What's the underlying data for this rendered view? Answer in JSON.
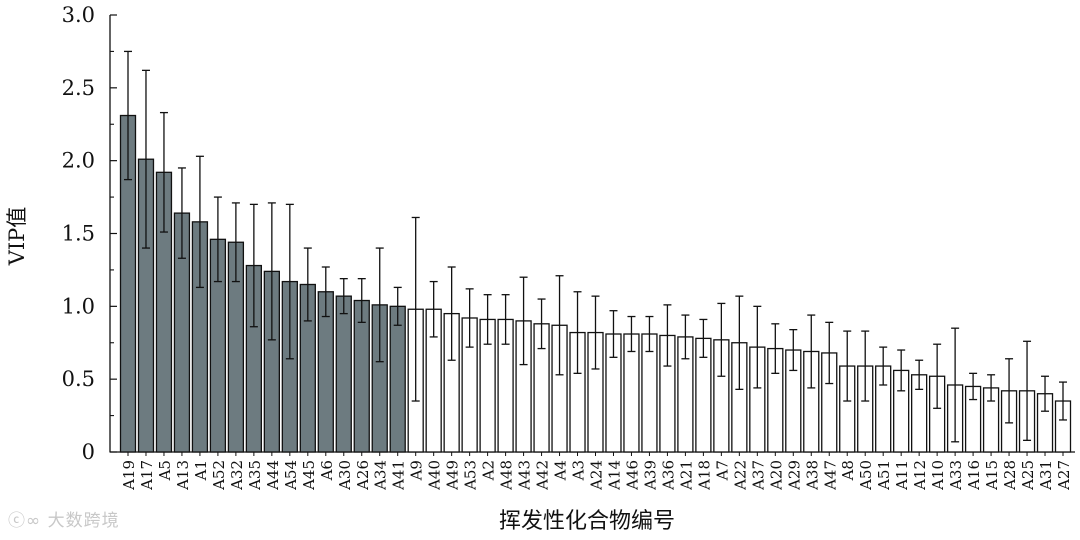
{
  "chart_data": {
    "type": "bar",
    "title": "",
    "ylabel": "VIP值",
    "xlabel": "挥发性化合物编号",
    "ylim": [
      0,
      3.0
    ],
    "yticks": [
      "0",
      "0.5",
      "1.0",
      "1.5",
      "2.0",
      "2.5",
      "3.0"
    ],
    "threshold": 1.0,
    "colors": {
      "above_threshold": "#6d7b80",
      "below_threshold": "#ffffff",
      "stroke": "#111111"
    },
    "categories": [
      "A19",
      "A17",
      "A5",
      "A13",
      "A1",
      "A52",
      "A32",
      "A35",
      "A44",
      "A54",
      "A45",
      "A6",
      "A30",
      "A26",
      "A34",
      "A41",
      "A9",
      "A40",
      "A49",
      "A53",
      "A2",
      "A48",
      "A43",
      "A42",
      "A4",
      "A3",
      "A24",
      "A14",
      "A46",
      "A39",
      "A36",
      "A21",
      "A18",
      "A7",
      "A22",
      "A37",
      "A20",
      "A29",
      "A38",
      "A47",
      "A8",
      "A50",
      "A51",
      "A11",
      "A12",
      "A10",
      "A33",
      "A16",
      "A15",
      "A28",
      "A25",
      "A31",
      "A27"
    ],
    "values": [
      2.31,
      2.01,
      1.92,
      1.64,
      1.58,
      1.46,
      1.44,
      1.28,
      1.24,
      1.17,
      1.15,
      1.1,
      1.07,
      1.04,
      1.01,
      1.0,
      0.98,
      0.98,
      0.95,
      0.92,
      0.91,
      0.91,
      0.9,
      0.88,
      0.87,
      0.82,
      0.82,
      0.81,
      0.81,
      0.81,
      0.8,
      0.79,
      0.78,
      0.77,
      0.75,
      0.72,
      0.71,
      0.7,
      0.69,
      0.68,
      0.59,
      0.59,
      0.59,
      0.56,
      0.53,
      0.52,
      0.46,
      0.45,
      0.44,
      0.42,
      0.42,
      0.4,
      0.35
    ],
    "errors": [
      0.44,
      0.61,
      0.41,
      0.31,
      0.45,
      0.29,
      0.27,
      0.42,
      0.47,
      0.53,
      0.25,
      0.17,
      0.12,
      0.15,
      0.39,
      0.13,
      0.63,
      0.19,
      0.32,
      0.2,
      0.17,
      0.17,
      0.3,
      0.17,
      0.34,
      0.28,
      0.25,
      0.16,
      0.12,
      0.12,
      0.21,
      0.15,
      0.13,
      0.25,
      0.32,
      0.28,
      0.17,
      0.14,
      0.25,
      0.21,
      0.24,
      0.24,
      0.13,
      0.14,
      0.1,
      0.22,
      0.39,
      0.09,
      0.09,
      0.22,
      0.34,
      0.12,
      0.13
    ]
  },
  "watermark": "大数跨境"
}
